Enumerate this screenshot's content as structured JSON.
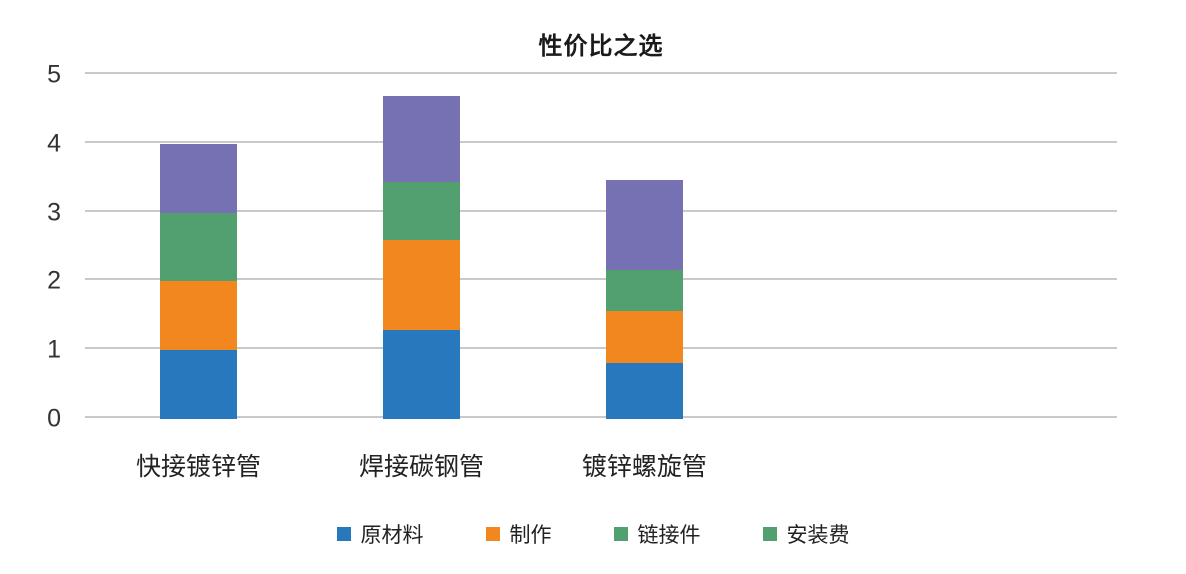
{
  "title": "性价比之选",
  "chart_data": {
    "type": "bar",
    "stacked": true,
    "title": "性价比之选",
    "xlabel": "",
    "ylabel": "",
    "categories": [
      "快接镀锌管",
      "焊接碳钢管",
      "镀锌螺旋管"
    ],
    "series": [
      {
        "name": "原材料",
        "color": "#2778BD",
        "legend_color": "#2778BD",
        "values": [
          1.0,
          1.3,
          0.82
        ]
      },
      {
        "name": "制作",
        "color": "#F2871F",
        "legend_color": "#F2871F",
        "values": [
          1.0,
          1.3,
          0.75
        ]
      },
      {
        "name": "链接件",
        "color": "#52A06F",
        "legend_color": "#52A06F",
        "values": [
          1.0,
          0.85,
          0.6
        ]
      },
      {
        "name": "安装费",
        "color": "#7571B3",
        "legend_color": "#52A06F",
        "values": [
          1.0,
          1.25,
          1.3
        ]
      }
    ],
    "totals": [
      4.0,
      4.7,
      3.47
    ],
    "ylim": [
      0,
      5
    ],
    "yticks": [
      0,
      1,
      2,
      3,
      4,
      5
    ],
    "grid": true,
    "legend_position": "bottom",
    "layout": {
      "bar_left_frac": [
        0.0727,
        0.2888,
        0.5048
      ],
      "bar_width_frac": 0.0746
    },
    "colors": {
      "gridline": "#c9c9c9",
      "tick_text": "#333333",
      "title_text": "#1a1a1a"
    }
  }
}
